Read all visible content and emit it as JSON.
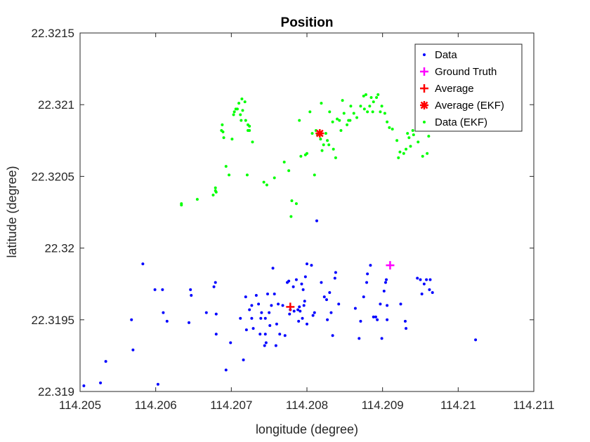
{
  "chart_data": {
    "type": "scatter",
    "title": "Position",
    "xlabel": "longitude (degree)",
    "ylabel": "latitude (degree)",
    "xlim": [
      114.205,
      114.211
    ],
    "ylim": [
      22.319,
      22.3215
    ],
    "xticks": [
      "114.205",
      "114.206",
      "114.207",
      "114.208",
      "114.209",
      "114.21",
      "114.211"
    ],
    "yticks": [
      "22.319",
      "22.3195",
      "22.32",
      "22.3205",
      "22.321",
      "22.3215"
    ],
    "grid": false,
    "legend_position": "top-right",
    "series": [
      {
        "name": "Data",
        "marker": "dot",
        "color": "#0000ff",
        "points": [
          [
            114.20505,
            22.31904
          ],
          [
            114.20527,
            22.31906
          ],
          [
            114.20534,
            22.31921
          ],
          [
            114.20568,
            22.3195
          ],
          [
            114.2057,
            22.31929
          ],
          [
            114.20583,
            22.31989
          ],
          [
            114.20599,
            22.31971
          ],
          [
            114.20603,
            22.31905
          ],
          [
            114.20609,
            22.31971
          ],
          [
            114.2061,
            22.31955
          ],
          [
            114.20615,
            22.31949
          ],
          [
            114.20644,
            22.31948
          ],
          [
            114.20646,
            22.31971
          ],
          [
            114.20647,
            22.31967
          ],
          [
            114.20667,
            22.31955
          ],
          [
            114.20677,
            22.31973
          ],
          [
            114.20679,
            22.31976
          ],
          [
            114.2068,
            22.31954
          ],
          [
            114.2068,
            22.3194
          ],
          [
            114.20693,
            22.31915
          ],
          [
            114.20699,
            22.31934
          ],
          [
            114.20712,
            22.31951
          ],
          [
            114.20716,
            22.31922
          ],
          [
            114.20719,
            22.31966
          ],
          [
            114.2072,
            22.31943
          ],
          [
            114.20724,
            22.31957
          ],
          [
            114.20727,
            22.31951
          ],
          [
            114.20727,
            22.3196
          ],
          [
            114.20729,
            22.31944
          ],
          [
            114.20733,
            22.31967
          ],
          [
            114.20736,
            22.31961
          ],
          [
            114.20738,
            22.3194
          ],
          [
            114.20739,
            22.31951
          ],
          [
            114.2074,
            22.31955
          ],
          [
            114.20744,
            22.31932
          ],
          [
            114.20745,
            22.31951
          ],
          [
            114.20745,
            22.3194
          ],
          [
            114.20746,
            22.31934
          ],
          [
            114.20748,
            22.31968
          ],
          [
            114.2075,
            22.31955
          ],
          [
            114.20751,
            22.31946
          ],
          [
            114.20753,
            22.3196
          ],
          [
            114.20755,
            22.31986
          ],
          [
            114.20757,
            22.31968
          ],
          [
            114.20759,
            22.31932
          ],
          [
            114.2076,
            22.31947
          ],
          [
            114.20762,
            22.31961
          ],
          [
            114.20764,
            22.3194
          ],
          [
            114.20768,
            22.3196
          ],
          [
            114.20771,
            22.31939
          ],
          [
            114.20774,
            22.31976
          ],
          [
            114.20776,
            22.31977
          ],
          [
            114.20777,
            22.31954
          ],
          [
            114.20778,
            22.31957
          ],
          [
            114.20782,
            22.31973
          ],
          [
            114.20783,
            22.31956
          ],
          [
            114.20786,
            22.31978
          ],
          [
            114.20788,
            22.31957
          ],
          [
            114.20789,
            22.31949
          ],
          [
            114.2079,
            22.31959
          ],
          [
            114.20791,
            22.31956
          ],
          [
            114.20793,
            22.31975
          ],
          [
            114.20794,
            22.31951
          ],
          [
            114.20795,
            22.31971
          ],
          [
            114.20796,
            22.3196
          ],
          [
            114.20797,
            22.31963
          ],
          [
            114.20798,
            22.3198
          ],
          [
            114.208,
            22.31947
          ],
          [
            114.208,
            22.31989
          ],
          [
            114.20806,
            22.31988
          ],
          [
            114.20808,
            22.31953
          ],
          [
            114.2081,
            22.31955
          ],
          [
            114.20813,
            22.32019
          ],
          [
            114.20819,
            22.31976
          ],
          [
            114.20823,
            22.31966
          ],
          [
            114.20826,
            22.31964
          ],
          [
            114.20827,
            22.3195
          ],
          [
            114.2083,
            22.31969
          ],
          [
            114.20832,
            22.31955
          ],
          [
            114.20834,
            22.31939
          ],
          [
            114.20837,
            22.31979
          ],
          [
            114.20838,
            22.31983
          ],
          [
            114.20842,
            22.31961
          ],
          [
            114.20864,
            22.31958
          ],
          [
            114.20869,
            22.31937
          ],
          [
            114.20871,
            22.31949
          ],
          [
            114.20875,
            22.31966
          ],
          [
            114.20879,
            22.31976
          ],
          [
            114.2088,
            22.31982
          ],
          [
            114.20884,
            22.31988
          ],
          [
            114.20888,
            22.31952
          ],
          [
            114.20891,
            22.31952
          ],
          [
            114.20893,
            22.3195
          ],
          [
            114.20897,
            22.31961
          ],
          [
            114.20899,
            22.31937
          ],
          [
            114.20902,
            22.3197
          ],
          [
            114.20904,
            22.31976
          ],
          [
            114.20905,
            22.31978
          ],
          [
            114.20906,
            22.3196
          ],
          [
            114.20906,
            22.3195
          ],
          [
            114.20924,
            22.31961
          ],
          [
            114.2093,
            22.31949
          ],
          [
            114.20931,
            22.31944
          ],
          [
            114.20946,
            22.31979
          ],
          [
            114.2095,
            22.31978
          ],
          [
            114.20952,
            22.31968
          ],
          [
            114.20955,
            22.31975
          ],
          [
            114.20958,
            22.31978
          ],
          [
            114.20962,
            22.31971
          ],
          [
            114.20963,
            22.31978
          ],
          [
            114.20966,
            22.31969
          ],
          [
            114.21023,
            22.31936
          ]
        ]
      },
      {
        "name": "Ground Truth",
        "marker": "plus",
        "color": "#ff00ff",
        "points": [
          [
            114.2091,
            22.31988
          ]
        ]
      },
      {
        "name": "Average",
        "marker": "plus",
        "color": "#ff0000",
        "points": [
          [
            114.20778,
            22.31959
          ]
        ]
      },
      {
        "name": "Average (EKF)",
        "marker": "asterisk",
        "color": "#ff0000",
        "points": [
          [
            114.20817,
            22.3208
          ]
        ]
      },
      {
        "name": "Data (EKF)",
        "marker": "dot",
        "color": "#00ff00",
        "points": [
          [
            114.20634,
            22.32031
          ],
          [
            114.20634,
            22.3203
          ],
          [
            114.20655,
            22.32034
          ],
          [
            114.20676,
            22.32037
          ],
          [
            114.20679,
            22.3204
          ],
          [
            114.20679,
            22.32042
          ],
          [
            114.2068,
            22.32039
          ],
          [
            114.20687,
            22.32082
          ],
          [
            114.20688,
            22.32086
          ],
          [
            114.20689,
            22.32081
          ],
          [
            114.2069,
            22.32077
          ],
          [
            114.20693,
            22.32057
          ],
          [
            114.20697,
            22.32051
          ],
          [
            114.20701,
            22.32076
          ],
          [
            114.20703,
            22.32093
          ],
          [
            114.20704,
            22.32095
          ],
          [
            114.20706,
            22.32097
          ],
          [
            114.20708,
            22.32097
          ],
          [
            114.2071,
            22.32101
          ],
          [
            114.20712,
            22.32093
          ],
          [
            114.20713,
            22.32089
          ],
          [
            114.20714,
            22.32104
          ],
          [
            114.20715,
            22.32096
          ],
          [
            114.20718,
            22.32102
          ],
          [
            114.20719,
            22.32089
          ],
          [
            114.20722,
            22.32082
          ],
          [
            114.20722,
            22.32086
          ],
          [
            114.20724,
            22.32082
          ],
          [
            114.20724,
            22.32085
          ],
          [
            114.20728,
            22.32074
          ],
          [
            114.20721,
            22.32051
          ],
          [
            114.20743,
            22.32046
          ],
          [
            114.20747,
            22.32044
          ],
          [
            114.20757,
            22.32049
          ],
          [
            114.2077,
            22.3206
          ],
          [
            114.20776,
            22.32054
          ],
          [
            114.20779,
            22.32022
          ],
          [
            114.2078,
            22.32033
          ],
          [
            114.20786,
            22.32031
          ],
          [
            114.2079,
            22.32089
          ],
          [
            114.20792,
            22.32064
          ],
          [
            114.20798,
            22.32065
          ],
          [
            114.208,
            22.32066
          ],
          [
            114.20804,
            22.32095
          ],
          [
            114.20807,
            22.3208
          ],
          [
            114.2081,
            22.32051
          ],
          [
            114.20812,
            22.32082
          ],
          [
            114.20814,
            22.32079
          ],
          [
            114.20818,
            22.32076
          ],
          [
            114.20819,
            22.32101
          ],
          [
            114.2082,
            22.32068
          ],
          [
            114.20822,
            22.32072
          ],
          [
            114.20825,
            22.3208
          ],
          [
            114.20827,
            22.32075
          ],
          [
            114.20829,
            22.32072
          ],
          [
            114.2083,
            22.32095
          ],
          [
            114.20834,
            22.32088
          ],
          [
            114.20835,
            22.32069
          ],
          [
            114.20838,
            22.32063
          ],
          [
            114.2084,
            22.3209
          ],
          [
            114.20843,
            22.32089
          ],
          [
            114.20845,
            22.32082
          ],
          [
            114.20847,
            22.32103
          ],
          [
            114.20849,
            22.32094
          ],
          [
            114.20853,
            22.32086
          ],
          [
            114.20855,
            22.32089
          ],
          [
            114.20857,
            22.32089
          ],
          [
            114.20858,
            22.32099
          ],
          [
            114.20862,
            22.32094
          ],
          [
            114.20866,
            22.32091
          ],
          [
            114.20871,
            22.32099
          ],
          [
            114.20875,
            22.32106
          ],
          [
            114.20876,
            22.32097
          ],
          [
            114.20878,
            22.32107
          ],
          [
            114.2088,
            22.32095
          ],
          [
            114.20883,
            22.32099
          ],
          [
            114.20885,
            22.32105
          ],
          [
            114.20887,
            22.32095
          ],
          [
            114.20888,
            22.32102
          ],
          [
            114.20892,
            22.32105
          ],
          [
            114.20894,
            22.32107
          ],
          [
            114.20897,
            22.32095
          ],
          [
            114.20899,
            22.32099
          ],
          [
            114.20903,
            22.32094
          ],
          [
            114.20906,
            22.32088
          ],
          [
            114.20909,
            22.32084
          ],
          [
            114.20913,
            22.32083
          ],
          [
            114.20919,
            22.32075
          ],
          [
            114.20921,
            22.32063
          ],
          [
            114.20923,
            22.32067
          ],
          [
            114.20928,
            22.32066
          ],
          [
            114.20931,
            22.32069
          ],
          [
            114.20933,
            22.3208
          ],
          [
            114.20935,
            22.32077
          ],
          [
            114.20937,
            22.32071
          ],
          [
            114.2094,
            22.32082
          ],
          [
            114.20941,
            22.32079
          ],
          [
            114.20945,
            22.32093
          ],
          [
            114.20947,
            22.32074
          ],
          [
            114.20953,
            22.32064
          ],
          [
            114.20959,
            22.32066
          ],
          [
            114.20961,
            22.32078
          ]
        ]
      }
    ]
  }
}
